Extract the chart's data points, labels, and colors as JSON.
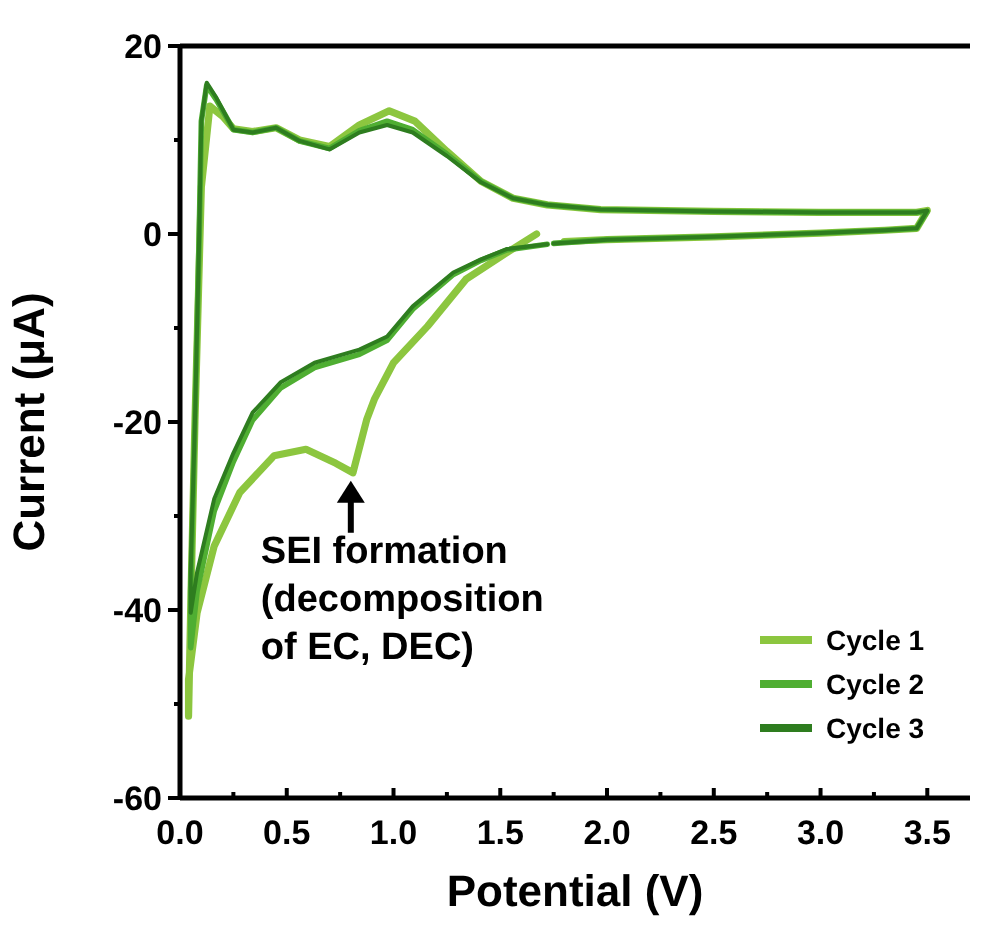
{
  "chart_data": {
    "type": "line",
    "xlabel": "Potential (V)",
    "ylabel": "Current (μA)",
    "xlim": [
      0,
      3.7
    ],
    "ylim": [
      -60,
      20
    ],
    "xticks": [
      {
        "value": 0,
        "label": "0.0"
      },
      {
        "value": 0.25,
        "label": null
      },
      {
        "value": 0.5,
        "label": "0.5"
      },
      {
        "value": 0.75,
        "label": null
      },
      {
        "value": 1,
        "label": "1.0"
      },
      {
        "value": 1.25,
        "label": null
      },
      {
        "value": 1.5,
        "label": "1.5"
      },
      {
        "value": 1.75,
        "label": null
      },
      {
        "value": 2,
        "label": "2.0"
      },
      {
        "value": 2.25,
        "label": null
      },
      {
        "value": 2.5,
        "label": "2.5"
      },
      {
        "value": 2.75,
        "label": null
      },
      {
        "value": 3,
        "label": "3.0"
      },
      {
        "value": 3.25,
        "label": null
      },
      {
        "value": 3.5,
        "label": "3.5"
      }
    ],
    "yticks": [
      -60,
      {
        "value": -50,
        "label": null
      },
      -40,
      {
        "value": -30,
        "label": null
      },
      -20,
      {
        "value": -10,
        "label": null
      },
      0,
      {
        "value": 10,
        "label": null
      },
      20
    ],
    "grid": false,
    "legend": "bottom right",
    "marker": "none",
    "line_style": "solid",
    "annotations": [
      {
        "text": "SEI formation\n(decomposition\nof EC, DEC)",
        "x": 0.8,
        "y": -25.4
      }
    ],
    "series": [
      {
        "name": "Cycle 1",
        "color": "#8cc63f",
        "x": [
          1.67,
          1.53,
          1.34,
          1.16,
          1.0,
          0.91,
          0.875,
          0.81,
          0.73,
          0.59,
          0.44,
          0.28,
          0.16,
          0.08,
          0.04,
          0.04,
          0.05,
          0.07,
          0.1,
          0.14,
          0.2,
          0.25,
          0.34,
          0.45,
          0.56,
          0.7,
          0.84,
          0.98,
          1.1,
          1.25,
          1.41,
          1.56,
          1.72,
          1.97,
          2.5,
          3.0,
          3.45,
          3.5,
          3.45,
          3.3,
          3.0,
          2.5,
          2.0,
          1.8
        ],
        "values": [
          0,
          -2,
          -4.8,
          -9.8,
          -13.7,
          -17.6,
          -19.7,
          -25.4,
          -24.4,
          -22.9,
          -23.6,
          -27.5,
          -33.2,
          -40.3,
          -47.4,
          -51.3,
          -40,
          -20,
          5,
          13.6,
          12.5,
          11.2,
          10.9,
          11.3,
          10.0,
          9.3,
          11.6,
          13.1,
          12.0,
          8.8,
          5.6,
          3.8,
          3.1,
          2.6,
          2.4,
          2.3,
          2.3,
          2.5,
          0.6,
          0.4,
          0.1,
          -0.3,
          -0.6,
          -0.8
        ]
      },
      {
        "name": "Cycle 2",
        "color": "#4fae32",
        "x": [
          1.72,
          1.53,
          1.41,
          1.28,
          1.09,
          0.97,
          0.84,
          0.63,
          0.47,
          0.34,
          0.25,
          0.16,
          0.08,
          0.05,
          0.05,
          0.07,
          0.09,
          0.1,
          0.125,
          0.17,
          0.25,
          0.34,
          0.45,
          0.56,
          0.7,
          0.84,
          0.97,
          1.09,
          1.25,
          1.41,
          1.56,
          1.72,
          1.97,
          2.5,
          3.0,
          3.45,
          3.5,
          3.45,
          3.3,
          3.0,
          2.5,
          2.0,
          1.75
        ],
        "values": [
          -1.1,
          -1.7,
          -2.8,
          -4.3,
          -8.0,
          -11.3,
          -12.8,
          -14.2,
          -16.4,
          -19.8,
          -24.2,
          -29.5,
          -38,
          -44,
          -38,
          -20,
          0,
          12,
          15.8,
          14.3,
          11.1,
          10.8,
          11.3,
          9.9,
          9.1,
          11.0,
          12.0,
          11.1,
          8.5,
          5.6,
          3.8,
          3.1,
          2.6,
          2.4,
          2.3,
          2.3,
          2.4,
          0.6,
          0.4,
          0.1,
          -0.3,
          -0.6,
          -1.0
        ]
      },
      {
        "name": "Cycle 3",
        "color": "#2e7d1f",
        "x": [
          1.72,
          1.53,
          1.41,
          1.28,
          1.09,
          0.97,
          0.84,
          0.63,
          0.47,
          0.34,
          0.25,
          0.16,
          0.08,
          0.05,
          0.05,
          0.07,
          0.09,
          0.1,
          0.125,
          0.17,
          0.25,
          0.34,
          0.45,
          0.56,
          0.7,
          0.84,
          0.97,
          1.09,
          1.25,
          1.41,
          1.56,
          1.72,
          1.97,
          2.5,
          3.0,
          3.45,
          3.5,
          3.45,
          3.3,
          3.0,
          2.5,
          2.0,
          1.75
        ],
        "values": [
          -1.1,
          -1.6,
          -2.7,
          -4.1,
          -7.7,
          -10.9,
          -12.3,
          -13.7,
          -15.8,
          -19.0,
          -23.3,
          -28.2,
          -36,
          -40.3,
          -36,
          -20,
          0,
          12,
          16.1,
          14.5,
          11.1,
          10.8,
          11.3,
          9.9,
          9.0,
          10.8,
          11.6,
          10.8,
          8.3,
          5.5,
          3.8,
          3.1,
          2.6,
          2.4,
          2.3,
          2.3,
          2.5,
          0.6,
          0.4,
          0.1,
          -0.3,
          -0.6,
          -1.0
        ]
      }
    ]
  }
}
